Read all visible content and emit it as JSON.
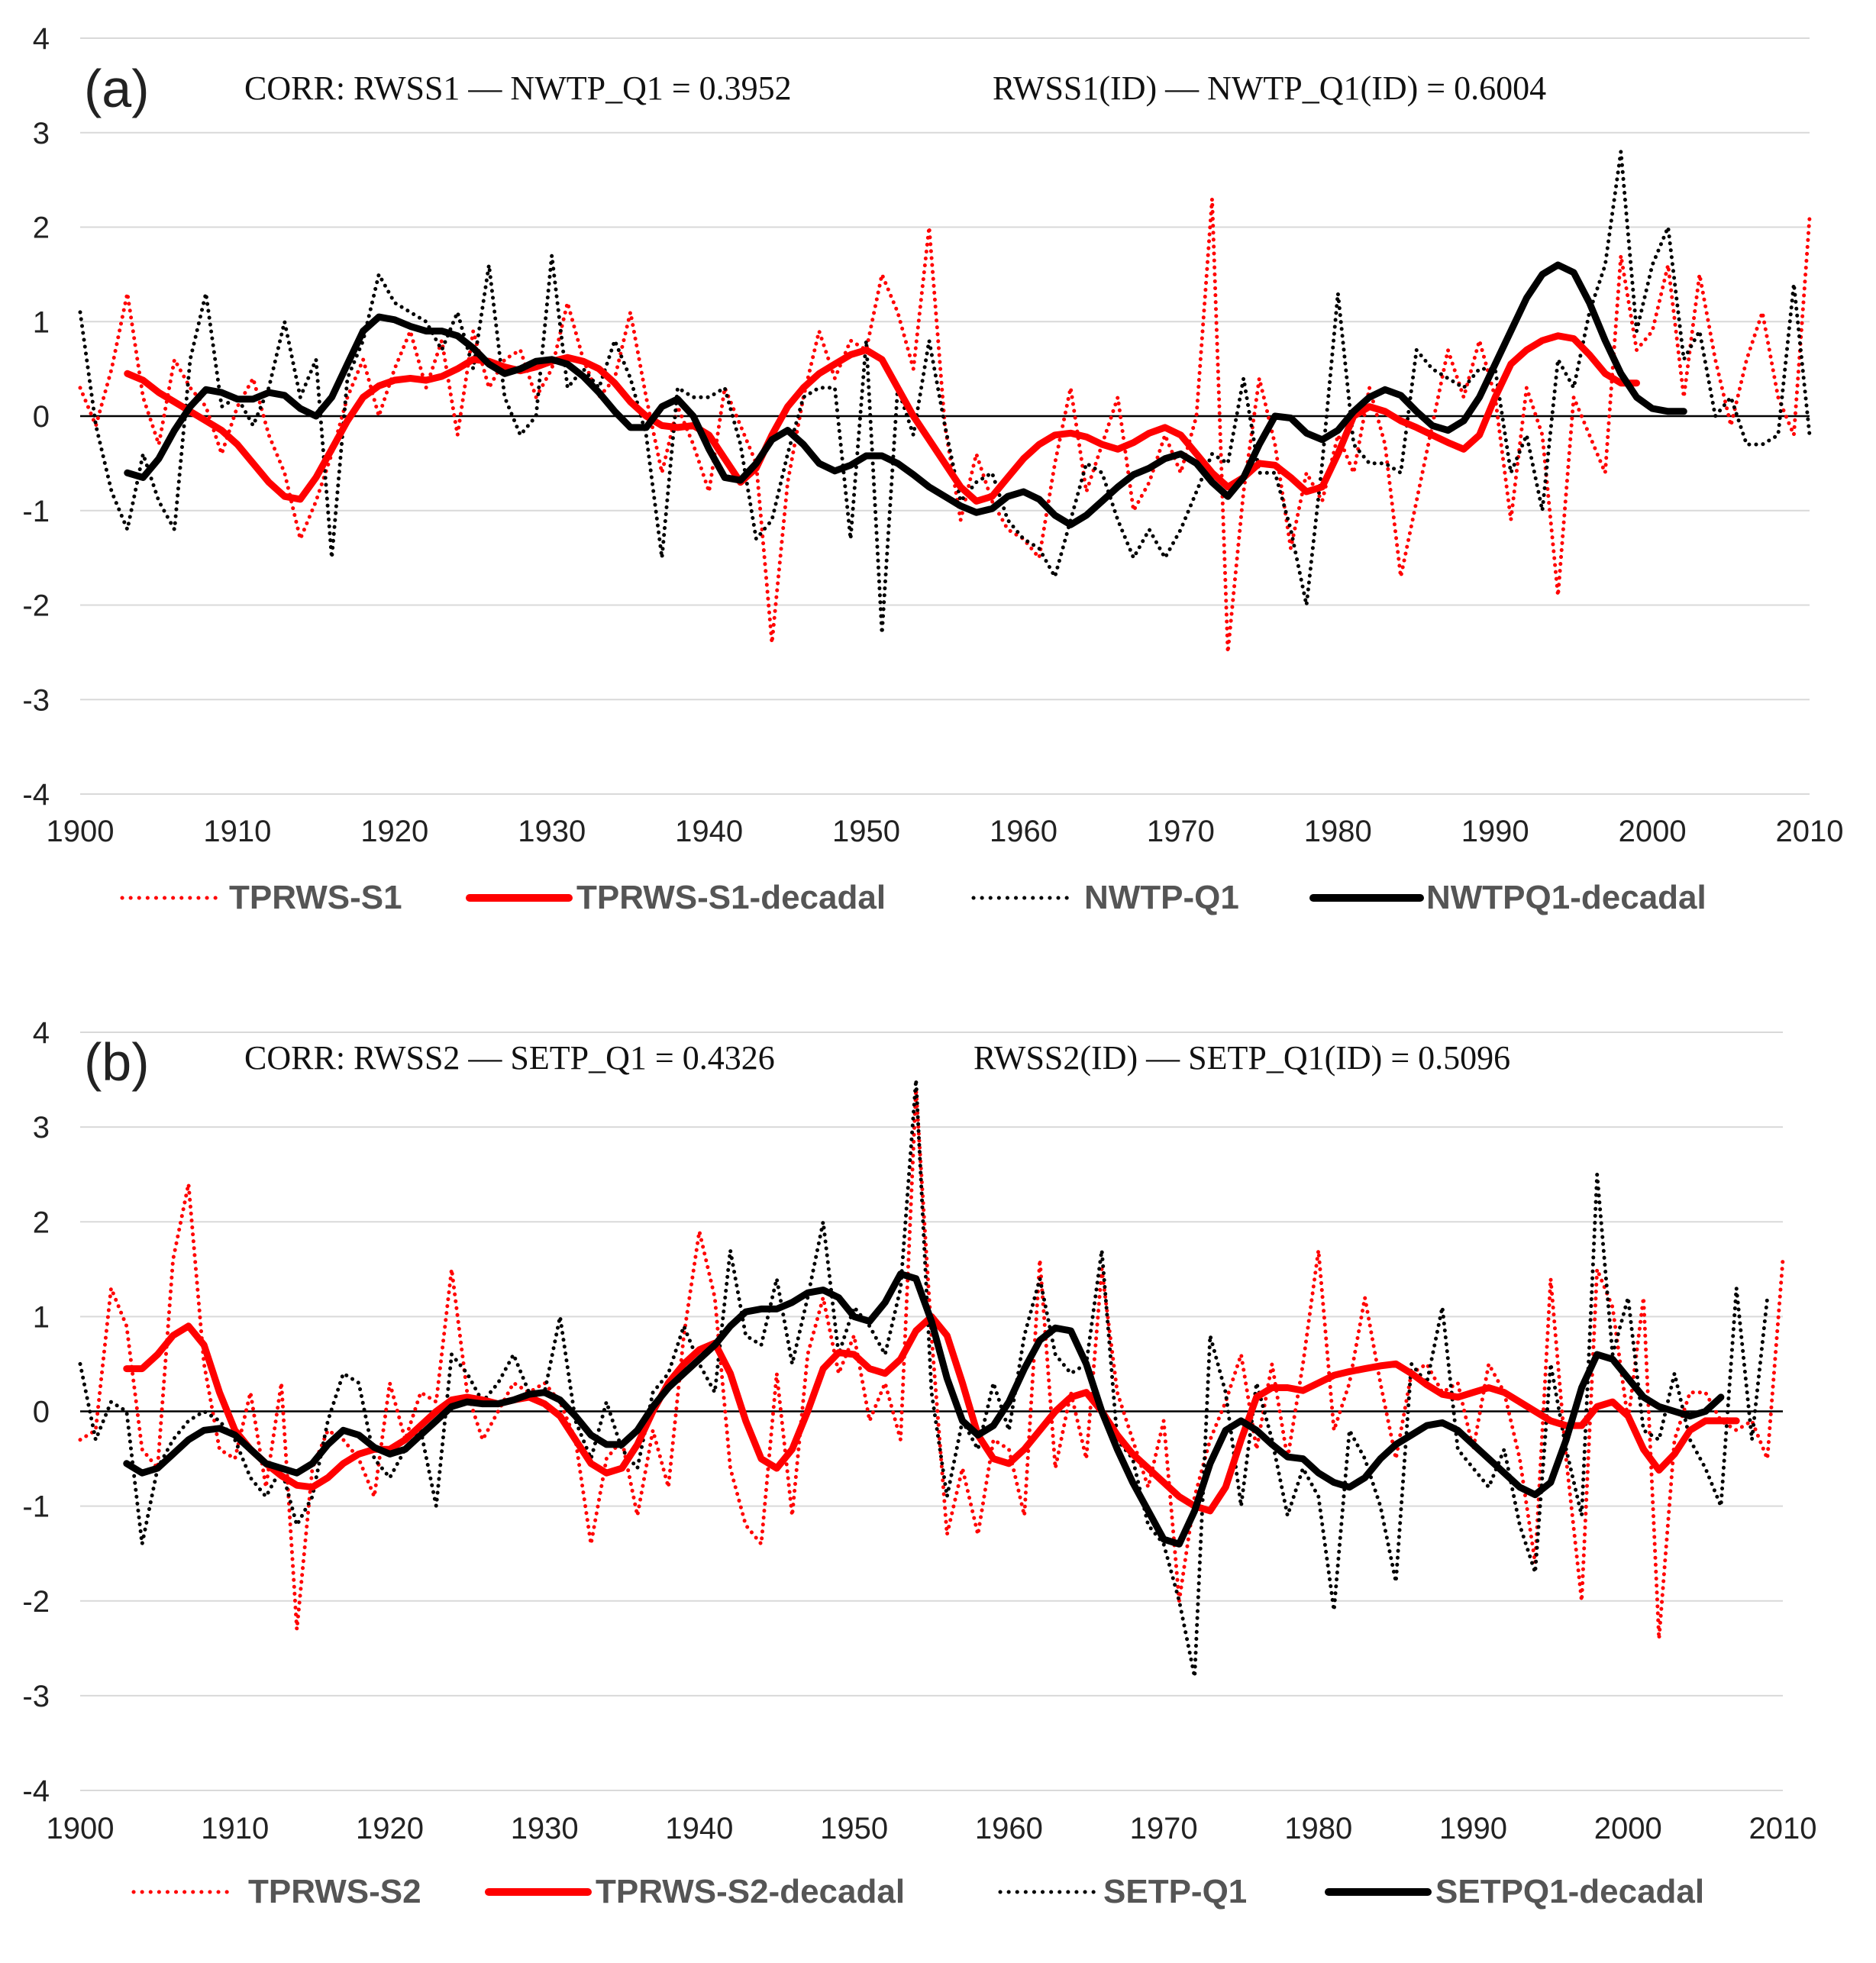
{
  "colors": {
    "red": "#ff0000",
    "black": "#000000",
    "grid": "#d9d9d9"
  },
  "chart_data": [
    {
      "type": "line",
      "panel_label": "(a)",
      "annotation_left": "CORR: RWSS1 — NWTP_Q1 = 0.3952",
      "annotation_right": "RWSS1(ID) — NWTP_Q1(ID)  = 0.6004",
      "xlim": [
        1900,
        2010
      ],
      "ylim": [
        -4,
        4
      ],
      "x_ticks": [
        "1900",
        "1910",
        "1920",
        "1930",
        "1940",
        "1950",
        "1960",
        "1970",
        "1980",
        "1990",
        "2000",
        "2010"
      ],
      "y_ticks": [
        "4",
        "3",
        "2",
        "1",
        "0",
        "-1",
        "-2",
        "-3",
        "-4"
      ],
      "series": [
        {
          "name": "TPRWS-S1",
          "style": "dotted",
          "color": "#ff0000",
          "start_year": 1900,
          "values": [
            0.3,
            -0.1,
            0.5,
            1.3,
            0.2,
            -0.3,
            0.6,
            0.3,
            0.1,
            -0.4,
            0.1,
            0.4,
            -0.2,
            -0.6,
            -1.3,
            -0.9,
            -0.4,
            0.2,
            0.6,
            0.0,
            0.5,
            0.9,
            0.3,
            0.8,
            -0.2,
            0.9,
            0.3,
            0.6,
            0.7,
            0.2,
            0.5,
            1.2,
            0.6,
            0.2,
            0.4,
            1.1,
            0.2,
            -0.6,
            0.1,
            -0.3,
            -0.8,
            0.3,
            -0.1,
            -0.5,
            -2.4,
            -0.7,
            0.2,
            0.9,
            0.4,
            0.8,
            0.7,
            1.5,
            1.1,
            0.5,
            2.0,
            -0.1,
            -1.1,
            -0.4,
            -0.9,
            -1.2,
            -1.3,
            -1.5,
            -0.5,
            0.3,
            -0.8,
            -0.3,
            0.2,
            -1.0,
            -0.7,
            -0.2,
            -0.6,
            0.0,
            2.3,
            -2.5,
            -0.8,
            0.4,
            -0.3,
            -1.4,
            -0.6,
            -0.9,
            -0.2,
            -0.6,
            0.3,
            -0.3,
            -1.7,
            -0.9,
            -0.1,
            0.7,
            0.2,
            0.8,
            0.2,
            -1.1,
            0.3,
            -0.2,
            -1.9,
            0.2,
            -0.2,
            -0.6,
            1.7,
            0.7,
            0.9,
            1.6,
            0.2,
            1.5,
            0.6,
            -0.1,
            0.6,
            1.1,
            0.2,
            -0.2,
            2.1
          ]
        },
        {
          "name": "TPRWS-S1-decadal",
          "style": "solid",
          "color": "#ff0000",
          "start_year": 1903,
          "values": [
            0.45,
            0.38,
            0.25,
            0.15,
            0.05,
            -0.05,
            -0.15,
            -0.3,
            -0.5,
            -0.7,
            -0.85,
            -0.88,
            -0.65,
            -0.35,
            -0.05,
            0.2,
            0.32,
            0.38,
            0.4,
            0.38,
            0.42,
            0.5,
            0.6,
            0.58,
            0.52,
            0.48,
            0.52,
            0.58,
            0.62,
            0.58,
            0.5,
            0.35,
            0.15,
            0.0,
            -0.1,
            -0.12,
            -0.1,
            -0.2,
            -0.45,
            -0.7,
            -0.55,
            -0.2,
            0.1,
            0.3,
            0.45,
            0.55,
            0.65,
            0.7,
            0.6,
            0.3,
            0.0,
            -0.25,
            -0.5,
            -0.75,
            -0.9,
            -0.85,
            -0.65,
            -0.45,
            -0.3,
            -0.2,
            -0.18,
            -0.22,
            -0.3,
            -0.35,
            -0.28,
            -0.18,
            -0.12,
            -0.2,
            -0.4,
            -0.6,
            -0.75,
            -0.65,
            -0.5,
            -0.52,
            -0.65,
            -0.8,
            -0.75,
            -0.4,
            0.0,
            0.1,
            0.05,
            -0.05,
            -0.12,
            -0.2,
            -0.28,
            -0.35,
            -0.2,
            0.2,
            0.55,
            0.7,
            0.8,
            0.85,
            0.82,
            0.65,
            0.45,
            0.35,
            0.35
          ]
        },
        {
          "name": "NWTP-Q1",
          "style": "dotted",
          "color": "#000000",
          "start_year": 1900,
          "values": [
            1.1,
            -0.1,
            -0.8,
            -1.2,
            -0.4,
            -0.9,
            -1.2,
            0.6,
            1.3,
            0.1,
            0.2,
            -0.1,
            0.3,
            1.0,
            0.2,
            0.6,
            -1.5,
            0.4,
            0.8,
            1.5,
            1.2,
            1.1,
            1.0,
            0.7,
            1.1,
            0.5,
            1.6,
            0.2,
            -0.2,
            0.0,
            1.7,
            0.3,
            0.5,
            0.3,
            0.8,
            0.4,
            -0.2,
            -1.5,
            0.3,
            0.2,
            0.2,
            0.3,
            -0.3,
            -1.3,
            -1.1,
            -0.4,
            0.2,
            0.3,
            0.3,
            -1.3,
            0.8,
            -2.3,
            0.3,
            -0.2,
            0.8,
            -0.1,
            -0.9,
            -0.7,
            -0.6,
            -1.1,
            -1.3,
            -1.4,
            -1.7,
            -1.1,
            -0.5,
            -0.6,
            -1.1,
            -1.5,
            -1.2,
            -1.5,
            -1.2,
            -0.8,
            -0.4,
            -0.5,
            0.4,
            -0.6,
            -0.6,
            -1.2,
            -2.0,
            -0.5,
            1.3,
            -0.3,
            -0.5,
            -0.5,
            -0.6,
            0.7,
            0.5,
            0.4,
            0.3,
            0.5,
            0.5,
            -0.6,
            -0.2,
            -1.0,
            0.6,
            0.3,
            1.1,
            1.6,
            2.8,
            0.9,
            1.6,
            2.0,
            0.6,
            0.9,
            0.0,
            0.2,
            -0.3,
            -0.3,
            -0.2,
            1.4,
            -0.2
          ]
        },
        {
          "name": "NWTPQ1-decadal",
          "style": "solid",
          "color": "#000000",
          "start_year": 1903,
          "values": [
            -0.6,
            -0.65,
            -0.45,
            -0.15,
            0.1,
            0.28,
            0.25,
            0.18,
            0.18,
            0.25,
            0.22,
            0.08,
            0.0,
            0.2,
            0.55,
            0.9,
            1.05,
            1.02,
            0.95,
            0.9,
            0.9,
            0.85,
            0.72,
            0.55,
            0.45,
            0.5,
            0.58,
            0.6,
            0.55,
            0.42,
            0.25,
            0.05,
            -0.12,
            -0.12,
            0.1,
            0.18,
            0.0,
            -0.35,
            -0.65,
            -0.68,
            -0.5,
            -0.25,
            -0.15,
            -0.3,
            -0.5,
            -0.58,
            -0.52,
            -0.42,
            -0.42,
            -0.5,
            -0.62,
            -0.75,
            -0.85,
            -0.95,
            -1.02,
            -0.98,
            -0.85,
            -0.8,
            -0.88,
            -1.05,
            -1.15,
            -1.05,
            -0.9,
            -0.75,
            -0.62,
            -0.55,
            -0.45,
            -0.4,
            -0.5,
            -0.7,
            -0.85,
            -0.65,
            -0.3,
            0.0,
            -0.02,
            -0.18,
            -0.25,
            -0.15,
            0.05,
            0.2,
            0.28,
            0.22,
            0.05,
            -0.1,
            -0.15,
            -0.05,
            0.2,
            0.55,
            0.9,
            1.25,
            1.5,
            1.6,
            1.52,
            1.2,
            0.8,
            0.45,
            0.2,
            0.08,
            0.05,
            0.05
          ]
        }
      ]
    },
    {
      "type": "line",
      "panel_label": "(b)",
      "annotation_left": "CORR: RWSS2 — SETP_Q1 = 0.4326",
      "annotation_right": "RWSS2(ID) — SETP_Q1(ID)  = 0.5096",
      "xlim": [
        1900,
        2010
      ],
      "ylim": [
        -4,
        4
      ],
      "x_ticks": [
        "1900",
        "1910",
        "1920",
        "1930",
        "1940",
        "1950",
        "1960",
        "1970",
        "1980",
        "1990",
        "2000",
        "2010"
      ],
      "y_ticks": [
        "4",
        "3",
        "2",
        "1",
        "0",
        "-1",
        "-2",
        "-3",
        "-4"
      ],
      "series": [
        {
          "name": "TPRWS-S2",
          "style": "dotted",
          "color": "#ff0000",
          "start_year": 1900,
          "values": [
            -0.3,
            -0.2,
            1.3,
            0.9,
            -0.4,
            -0.6,
            1.6,
            2.4,
            0.5,
            -0.4,
            -0.5,
            0.2,
            -0.8,
            0.3,
            -2.3,
            -0.6,
            -0.2,
            -0.3,
            -0.5,
            -0.9,
            0.3,
            -0.3,
            0.2,
            0.1,
            1.5,
            0.2,
            -0.3,
            0.0,
            0.3,
            0.2,
            0.3,
            0.1,
            -0.3,
            -1.4,
            -0.5,
            -0.3,
            -1.1,
            -0.2,
            -0.8,
            0.8,
            1.9,
            1.2,
            -0.6,
            -1.2,
            -1.4,
            0.4,
            -1.1,
            0.6,
            1.2,
            0.4,
            0.8,
            -0.1,
            0.3,
            -0.3,
            3.4,
            0.8,
            -1.3,
            -0.6,
            -1.3,
            -0.3,
            -0.4,
            -1.1,
            1.6,
            -0.6,
            0.2,
            -0.5,
            1.5,
            0.2,
            -0.3,
            -0.8,
            -0.1,
            -2.0,
            -0.9,
            -0.3,
            0.1,
            0.6,
            -0.4,
            0.5,
            -0.5,
            0.5,
            1.7,
            -0.2,
            0.3,
            1.2,
            0.3,
            -0.5,
            0.4,
            0.5,
            0.2,
            0.3,
            -0.4,
            0.5,
            0.2,
            -0.5,
            -1.6,
            1.4,
            -0.5,
            -2.0,
            1.5,
            1.1,
            -0.1,
            1.2,
            -2.4,
            -0.3,
            0.2,
            0.2,
            -0.1,
            -0.2,
            -0.1,
            -0.5,
            1.6
          ]
        },
        {
          "name": "TPRWS-S2-decadal",
          "style": "solid",
          "color": "#ff0000",
          "start_year": 1903,
          "values": [
            0.45,
            0.45,
            0.6,
            0.8,
            0.9,
            0.7,
            0.2,
            -0.2,
            -0.4,
            -0.55,
            -0.68,
            -0.78,
            -0.8,
            -0.7,
            -0.55,
            -0.45,
            -0.4,
            -0.4,
            -0.3,
            -0.15,
            0.0,
            0.12,
            0.15,
            0.12,
            0.08,
            0.12,
            0.15,
            0.08,
            -0.05,
            -0.3,
            -0.55,
            -0.65,
            -0.6,
            -0.35,
            0.0,
            0.3,
            0.5,
            0.65,
            0.72,
            0.4,
            -0.1,
            -0.5,
            -0.6,
            -0.4,
            0.0,
            0.45,
            0.62,
            0.6,
            0.45,
            0.4,
            0.55,
            0.85,
            1.0,
            0.8,
            0.3,
            -0.25,
            -0.5,
            -0.55,
            -0.4,
            -0.2,
            0.0,
            0.15,
            0.2,
            0.0,
            -0.25,
            -0.45,
            -0.6,
            -0.75,
            -0.9,
            -1.0,
            -1.05,
            -0.8,
            -0.3,
            0.15,
            0.25,
            0.25,
            0.22,
            0.3,
            0.38,
            0.42,
            0.45,
            0.48,
            0.5,
            0.4,
            0.28,
            0.18,
            0.15,
            0.2,
            0.25,
            0.2,
            0.1,
            0.0,
            -0.1,
            -0.15,
            -0.15,
            0.05,
            0.1,
            -0.05,
            -0.4,
            -0.62,
            -0.45,
            -0.2,
            -0.1,
            -0.1,
            -0.1
          ]
        },
        {
          "name": "SETP-Q1",
          "style": "dotted",
          "color": "#000000",
          "start_year": 1900,
          "values": [
            0.5,
            -0.3,
            0.1,
            0.0,
            -1.4,
            -0.6,
            -0.3,
            -0.1,
            0.0,
            -0.1,
            -0.3,
            -0.7,
            -0.9,
            -0.6,
            -1.2,
            -0.9,
            -0.1,
            0.4,
            0.3,
            -0.5,
            -0.7,
            -0.4,
            -0.2,
            -1.0,
            0.6,
            0.4,
            0.1,
            0.3,
            0.6,
            0.2,
            0.2,
            1.0,
            -0.1,
            -0.5,
            0.1,
            -0.4,
            -0.6,
            0.2,
            0.4,
            0.9,
            0.5,
            0.2,
            1.7,
            0.8,
            0.7,
            1.4,
            0.5,
            1.2,
            2.0,
            0.6,
            1.1,
            0.9,
            0.6,
            1.3,
            3.5,
            0.2,
            -0.9,
            -0.1,
            -0.4,
            0.3,
            -0.2,
            0.8,
            1.4,
            0.6,
            0.4,
            0.5,
            1.7,
            -0.3,
            -0.5,
            -1.2,
            -1.4,
            -2.0,
            -2.8,
            0.8,
            0.2,
            -1.0,
            0.3,
            -0.3,
            -1.1,
            -0.6,
            -0.9,
            -2.1,
            -0.2,
            -0.5,
            -1.0,
            -1.8,
            0.5,
            0.3,
            1.1,
            -0.4,
            -0.6,
            -0.8,
            -0.4,
            -1.2,
            -1.7,
            0.5,
            -0.4,
            -1.1,
            2.5,
            0.6,
            1.2,
            -0.2,
            -0.3,
            0.4,
            -0.3,
            -0.6,
            -1.0,
            1.3,
            -0.3,
            1.2
          ]
        },
        {
          "name": "SETPQ1-decadal",
          "style": "solid",
          "color": "#000000",
          "start_year": 1903,
          "values": [
            -0.55,
            -0.65,
            -0.6,
            -0.45,
            -0.3,
            -0.2,
            -0.18,
            -0.25,
            -0.4,
            -0.55,
            -0.6,
            -0.65,
            -0.55,
            -0.35,
            -0.2,
            -0.25,
            -0.38,
            -0.45,
            -0.4,
            -0.25,
            -0.1,
            0.05,
            0.1,
            0.08,
            0.08,
            0.12,
            0.18,
            0.2,
            0.12,
            -0.05,
            -0.25,
            -0.35,
            -0.35,
            -0.2,
            0.05,
            0.25,
            0.4,
            0.55,
            0.7,
            0.9,
            1.05,
            1.08,
            1.08,
            1.15,
            1.25,
            1.28,
            1.2,
            1.0,
            0.95,
            1.15,
            1.45,
            1.4,
            0.95,
            0.35,
            -0.1,
            -0.25,
            -0.15,
            0.1,
            0.45,
            0.75,
            0.88,
            0.85,
            0.5,
            0.0,
            -0.4,
            -0.75,
            -1.05,
            -1.35,
            -1.4,
            -1.05,
            -0.55,
            -0.2,
            -0.1,
            -0.2,
            -0.35,
            -0.48,
            -0.5,
            -0.65,
            -0.75,
            -0.8,
            -0.7,
            -0.5,
            -0.35,
            -0.25,
            -0.15,
            -0.12,
            -0.2,
            -0.35,
            -0.5,
            -0.65,
            -0.8,
            -0.88,
            -0.75,
            -0.3,
            0.25,
            0.6,
            0.55,
            0.35,
            0.15,
            0.05,
            0.0,
            -0.05,
            0.0,
            0.15
          ]
        }
      ]
    }
  ]
}
